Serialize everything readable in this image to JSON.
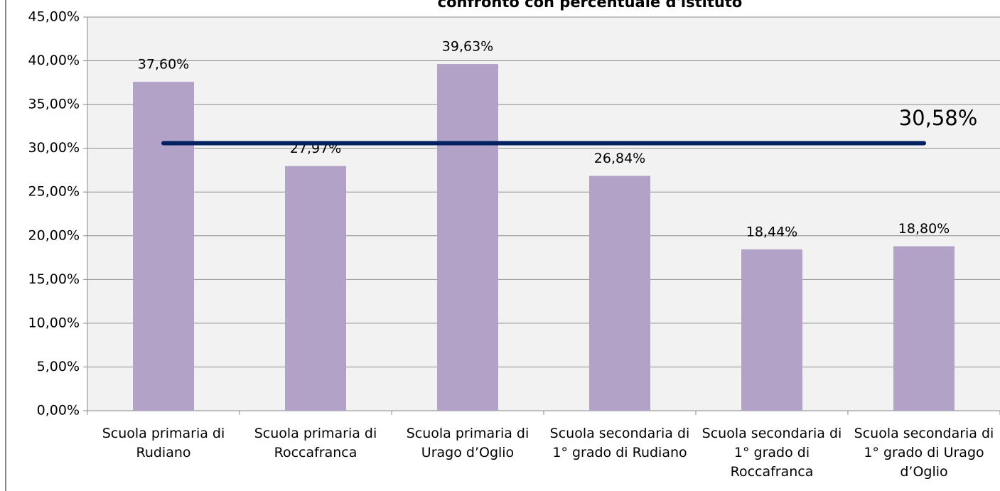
{
  "chart_data": {
    "type": "bar",
    "title": "confronto con percentuale d'istituto",
    "categories": [
      "Scuola primaria di Rudiano",
      "Scuola primaria di Roccafranca",
      "Scuola primaria di Urago d’Oglio",
      "Scuola secondaria di 1° grado di Rudiano",
      "Scuola secondaria di 1° grado di Roccafranca",
      "Scuola secondaria di 1° grado di Urago d’Oglio"
    ],
    "values": [
      37.6,
      27.97,
      39.63,
      26.84,
      18.44,
      18.8
    ],
    "value_labels": [
      "37,60%",
      "27,97%",
      "39,63%",
      "26,84%",
      "18,44%",
      "18,80%"
    ],
    "color": "#b3a2c7",
    "reference_line": {
      "value": 30.58,
      "label": "30,58%",
      "color": "#002060"
    },
    "ylim": [
      0,
      45
    ],
    "yticks": [
      {
        "value": 0,
        "label": "0,00%"
      },
      {
        "value": 5,
        "label": "5,00%"
      },
      {
        "value": 10,
        "label": "10,00%"
      },
      {
        "value": 15,
        "label": "15,00%"
      },
      {
        "value": 20,
        "label": "20,00%"
      },
      {
        "value": 25,
        "label": "25,00%"
      },
      {
        "value": 30,
        "label": "30,00%"
      },
      {
        "value": 35,
        "label": "35,00%"
      },
      {
        "value": 40,
        "label": "40,00%"
      },
      {
        "value": 45,
        "label": "45,00%"
      }
    ],
    "grid": true
  }
}
